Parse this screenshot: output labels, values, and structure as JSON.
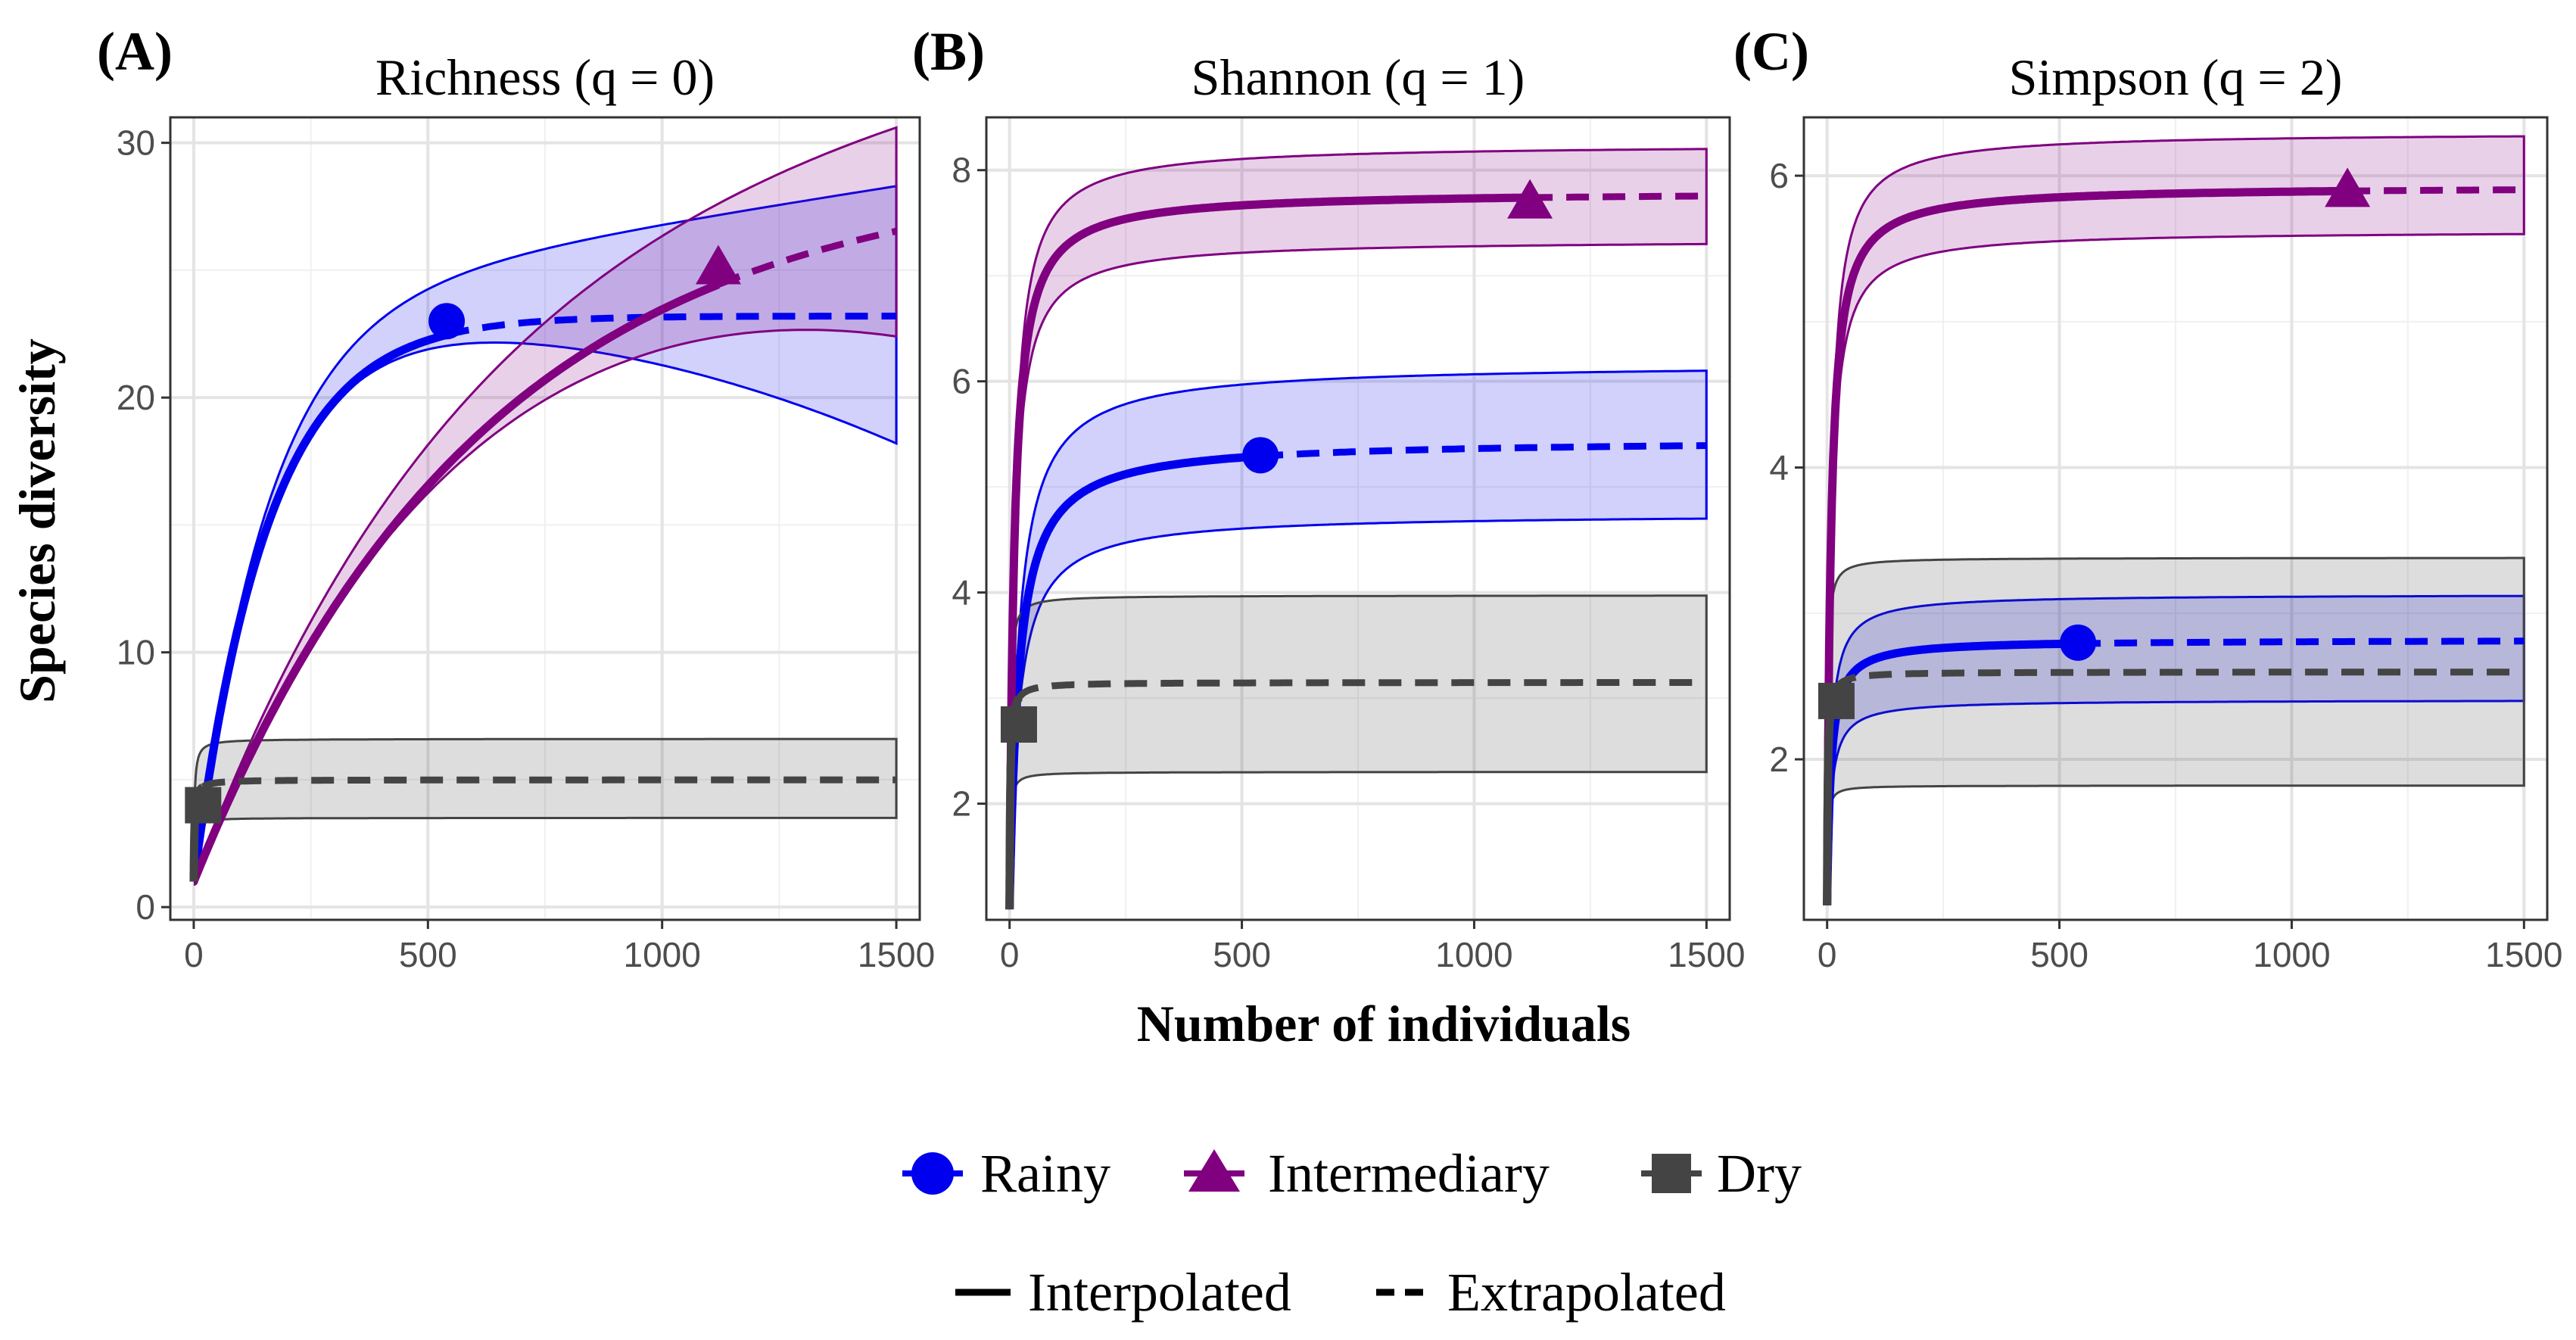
{
  "figure": {
    "y_axis_label": "Species diversity",
    "x_axis_label": "Number of individuals"
  },
  "legend": {
    "groups": [
      {
        "name": "Rainy",
        "color": "#0000EE",
        "shape": "circle"
      },
      {
        "name": "Intermediary",
        "color": "#800080",
        "shape": "triangle"
      },
      {
        "name": "Dry",
        "color": "#444444",
        "shape": "square"
      }
    ],
    "line_types": [
      {
        "name": "Interpolated",
        "style": "solid"
      },
      {
        "name": "Extrapolated",
        "style": "dashed"
      }
    ]
  },
  "chart_data": [
    {
      "type": "line",
      "panel": "(A)",
      "title": "Richness (q = 0)",
      "xlim": [
        -50,
        1550
      ],
      "ylim": [
        -0.5,
        31
      ],
      "x_ticks": [
        0,
        500,
        1000,
        1500
      ],
      "y_ticks": [
        0,
        10,
        20,
        30
      ],
      "series": [
        {
          "name": "Rainy",
          "color": "#0000EE",
          "model": "rich",
          "asymptote": 23.2,
          "k": 0.0063,
          "n_obs": 540,
          "obs_value": 23.0,
          "ci_upper_end": 28.3,
          "ci_lower_end": 18.2
        },
        {
          "name": "Intermediary",
          "color": "#800080",
          "model": "rich",
          "asymptote": 29.0,
          "k": 0.00162,
          "n_obs": 1120,
          "obs_value": 25.1,
          "ci_upper_end": 30.6,
          "ci_lower_end": 22.4
        },
        {
          "name": "Dry",
          "color": "#444444",
          "model": "flat",
          "asymptote": 5.0,
          "n_obs": 20,
          "obs_value": 4.0,
          "ci_upper_end": 6.6,
          "ci_lower_end": 3.5
        }
      ]
    },
    {
      "type": "line",
      "panel": "(B)",
      "title": "Shannon (q = 1)",
      "xlim": [
        -50,
        1550
      ],
      "ylim": [
        0.9,
        8.5
      ],
      "x_ticks": [
        0,
        500,
        1000,
        1500
      ],
      "y_ticks": [
        2,
        4,
        6,
        8
      ],
      "series": [
        {
          "name": "Rainy",
          "color": "#0000EE",
          "model": "hyper",
          "asymptote": 5.45,
          "c": 20,
          "n_obs": 540,
          "obs_value": 5.3,
          "ci_upper_end": 6.1,
          "ci_lower_end": 4.7
        },
        {
          "name": "Intermediary",
          "color": "#800080",
          "model": "hyper",
          "asymptote": 7.8,
          "c": 10,
          "n_obs": 1120,
          "obs_value": 7.7,
          "ci_upper_end": 8.2,
          "ci_lower_end": 7.3
        },
        {
          "name": "Dry",
          "color": "#444444",
          "model": "flat",
          "asymptote": 3.15,
          "n_obs": 20,
          "obs_value": 2.75,
          "ci_upper_end": 3.97,
          "ci_lower_end": 2.3
        }
      ]
    },
    {
      "type": "line",
      "panel": "(C)",
      "title": "Simpson (q = 2)",
      "xlim": [
        -50,
        1550
      ],
      "ylim": [
        0.9,
        6.4
      ],
      "x_ticks": [
        0,
        500,
        1000,
        1500
      ],
      "y_ticks": [
        2,
        4,
        6
      ],
      "series": [
        {
          "name": "Rainy",
          "color": "#0000EE",
          "model": "hyper",
          "asymptote": 2.82,
          "c": 8,
          "n_obs": 540,
          "obs_value": 2.8,
          "ci_upper_end": 3.12,
          "ci_lower_end": 2.4
        },
        {
          "name": "Intermediary",
          "color": "#800080",
          "model": "hyper",
          "asymptote": 5.93,
          "c": 8,
          "n_obs": 1120,
          "obs_value": 5.9,
          "ci_upper_end": 6.27,
          "ci_lower_end": 5.6
        },
        {
          "name": "Dry",
          "color": "#444444",
          "model": "flat",
          "asymptote": 2.6,
          "n_obs": 20,
          "obs_value": 2.4,
          "ci_upper_end": 3.38,
          "ci_lower_end": 1.82
        }
      ]
    }
  ]
}
